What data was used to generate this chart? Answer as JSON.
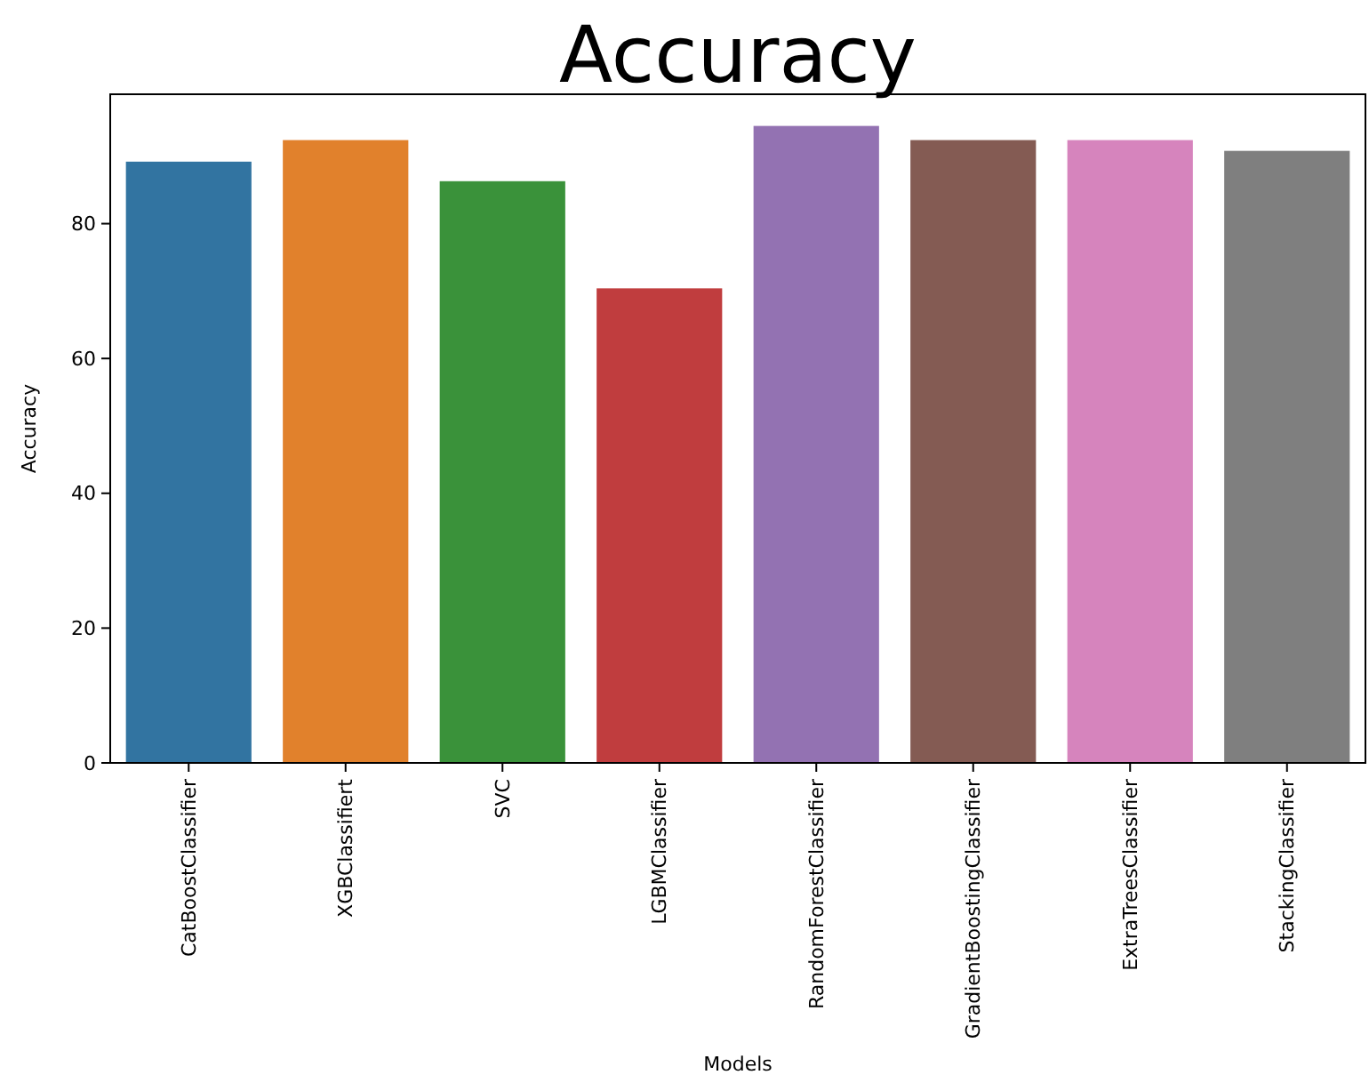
{
  "chart_data": {
    "type": "bar",
    "title": "Accuracy",
    "xlabel": "Models",
    "ylabel": "Accuracy",
    "categories": [
      "CatBoostClassifier",
      "XGBClassifiert",
      "SVC",
      "LGBMClassifier",
      "RandomForestClassifier",
      "GradientBoostingClassifier",
      "ExtraTreesClassifier",
      "StackingClassifier"
    ],
    "values": [
      89.2,
      92.4,
      86.3,
      70.4,
      94.5,
      92.4,
      92.4,
      90.8
    ],
    "colors": [
      "#3274a1",
      "#e1812c",
      "#3a923a",
      "#c03d3e",
      "#9372b2",
      "#845b53",
      "#d684bd",
      "#7f7f7f"
    ],
    "ylim": [
      0,
      99.2
    ],
    "yticks": [
      0,
      20,
      40,
      60,
      80
    ]
  }
}
